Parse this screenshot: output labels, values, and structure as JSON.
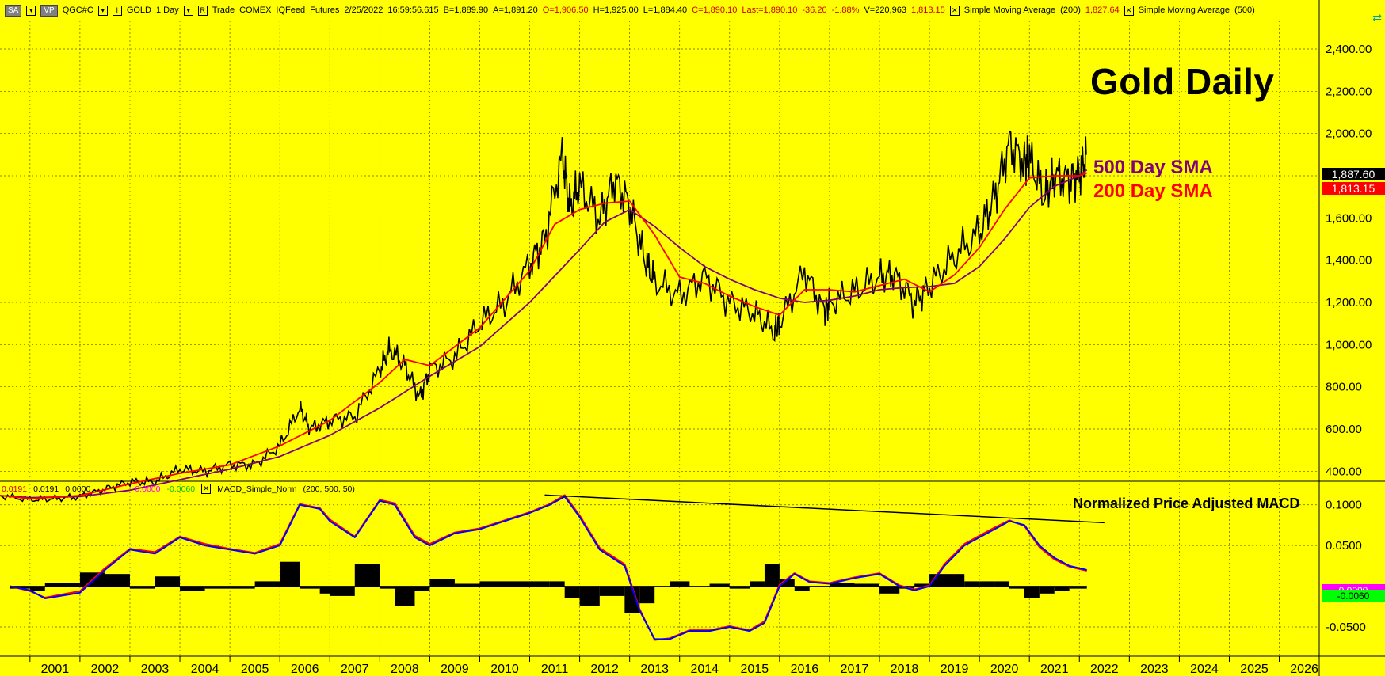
{
  "toolbar": {
    "sa_label": "SA",
    "vp_label": "VP",
    "symbol": "QGC#C",
    "instrument": "GOLD",
    "period": "1 Day",
    "mode": "Trade",
    "exchange": "COMEX",
    "feed": "IQFeed",
    "type": "Futures",
    "datetime": "2/25/2022",
    "time": "16:59:56.615",
    "bid": "B=1,889.90",
    "ask": "A=1,891.20",
    "open": "O=1,906.50",
    "high": "H=1,925.00",
    "low": "L=1,884.40",
    "close": "C=1,890.10",
    "last": "Last=1,890.10",
    "change": "-36.20",
    "change_pct": "-1.88%",
    "volume": "V=220,963",
    "sma200_val": "1,813.15",
    "sma1_name": "Simple Moving Average",
    "sma1_param": "(200)",
    "sma500_val": "1,827.64",
    "sma2_name": "Simple Moving Average",
    "sma2_param": "(500)"
  },
  "annotations": {
    "title": "Gold Daily",
    "sma500_label": "500 Day SMA",
    "sma200_label": "200 Day SMA",
    "macd_title": "Normalized Price Adjusted MACD"
  },
  "macd_legend": {
    "v1": "0.0191",
    "v2": "0.0191",
    "v3": "0.0000",
    "v4": "0.0000",
    "v5": "-0.0060",
    "name": "MACD_Simple_Norm",
    "params": "(200,  500,  50)"
  },
  "price_tags": {
    "last": "1,887.60",
    "sma": "1,813.15",
    "macd_a": "0.0000",
    "macd_b": "-0.0060"
  },
  "colors": {
    "background": "#ffff00",
    "price": "#000000",
    "sma200": "#ff0000",
    "sma500": "#800080",
    "macd_blue": "#0000ff",
    "macd_red": "#ff0000",
    "signal_magenta": "#ff00ff",
    "signal_green": "#00ff00"
  },
  "chart_data": [
    {
      "type": "line",
      "title": "Gold Daily",
      "x_ticks": [
        "2001",
        "2002",
        "2003",
        "2004",
        "2005",
        "2006",
        "2007",
        "2008",
        "2009",
        "2010",
        "2011",
        "2012",
        "2013",
        "2014",
        "2015",
        "2016",
        "2017",
        "2018",
        "2019",
        "2020",
        "2021",
        "2022",
        "2023",
        "2024",
        "2025",
        "2026"
      ],
      "y_ticks": [
        "400.00",
        "600.00",
        "800.00",
        "1,000.00",
        "1,200.00",
        "1,400.00",
        "1,600.00",
        "1,800.00",
        "2,000.00",
        "2,200.00",
        "2,400.00"
      ],
      "ylim": [
        360,
        2520
      ],
      "xlim": [
        2000.4,
        2026.8
      ],
      "grid": true,
      "series": [
        {
          "name": "GOLD",
          "color": "#000000",
          "x": [
            2000.4,
            2001.0,
            2001.5,
            2002.0,
            2002.5,
            2003.0,
            2003.5,
            2004.0,
            2004.5,
            2005.0,
            2005.5,
            2006.0,
            2006.4,
            2006.6,
            2007.0,
            2007.5,
            2008.0,
            2008.2,
            2008.5,
            2008.8,
            2009.0,
            2009.5,
            2010.0,
            2010.5,
            2011.0,
            2011.3,
            2011.65,
            2011.8,
            2012.0,
            2012.4,
            2012.7,
            2013.0,
            2013.3,
            2013.5,
            2014.0,
            2014.5,
            2015.0,
            2015.5,
            2015.9,
            2016.0,
            2016.5,
            2016.9,
            2017.0,
            2017.5,
            2018.0,
            2018.3,
            2018.7,
            2019.0,
            2019.5,
            2020.0,
            2020.3,
            2020.6,
            2020.9,
            2021.0,
            2021.3,
            2021.5,
            2021.8,
            2022.0,
            2022.15
          ],
          "y": [
            285,
            265,
            270,
            280,
            315,
            350,
            350,
            410,
            400,
            430,
            430,
            520,
            700,
            600,
            640,
            660,
            880,
            980,
            900,
            750,
            880,
            940,
            1100,
            1200,
            1380,
            1500,
            1900,
            1650,
            1750,
            1600,
            1780,
            1660,
            1400,
            1300,
            1230,
            1320,
            1200,
            1150,
            1060,
            1100,
            1350,
            1150,
            1200,
            1250,
            1320,
            1330,
            1200,
            1280,
            1420,
            1530,
            1700,
            1950,
            1860,
            1880,
            1700,
            1800,
            1780,
            1810,
            1900
          ]
        },
        {
          "name": "",
          "color": "#ff0000",
          "x": [
            2000.4,
            2001.0,
            2002.0,
            2003.0,
            2004.0,
            2005.0,
            2006.0,
            2007.0,
            2008.0,
            2008.5,
            2009.0,
            2010.0,
            2011.0,
            2011.5,
            2012.0,
            2012.5,
            2013.0,
            2013.5,
            2014.0,
            2014.5,
            2015.0,
            2015.5,
            2016.0,
            2016.5,
            2017.0,
            2017.5,
            2018.0,
            2018.5,
            2019.0,
            2019.5,
            2020.0,
            2020.5,
            2021.0,
            2021.5,
            2022.0,
            2022.15
          ],
          "y": [
            285,
            270,
            285,
            340,
            390,
            430,
            520,
            640,
            820,
            930,
            900,
            1080,
            1350,
            1570,
            1640,
            1670,
            1680,
            1520,
            1320,
            1290,
            1230,
            1180,
            1140,
            1260,
            1260,
            1250,
            1280,
            1310,
            1250,
            1330,
            1460,
            1640,
            1790,
            1800,
            1800,
            1813
          ]
        },
        {
          "name": "",
          "color": "#800080",
          "x": [
            2000.4,
            2001.0,
            2002.0,
            2003.0,
            2004.0,
            2005.0,
            2006.0,
            2007.0,
            2008.0,
            2009.0,
            2010.0,
            2011.0,
            2012.0,
            2012.5,
            2013.0,
            2013.5,
            2014.0,
            2014.5,
            2015.0,
            2015.5,
            2016.0,
            2016.5,
            2017.0,
            2017.5,
            2018.0,
            2018.5,
            2019.0,
            2019.5,
            2020.0,
            2020.5,
            2021.0,
            2021.5,
            2022.0,
            2022.15
          ],
          "y": [
            285,
            275,
            280,
            310,
            360,
            410,
            470,
            570,
            700,
            850,
            990,
            1200,
            1450,
            1580,
            1640,
            1560,
            1460,
            1370,
            1310,
            1260,
            1220,
            1200,
            1210,
            1230,
            1260,
            1270,
            1275,
            1290,
            1370,
            1500,
            1650,
            1750,
            1800,
            1828
          ]
        }
      ]
    },
    {
      "type": "line",
      "title": "Normalized Price Adjusted MACD",
      "y_ticks": [
        "0.1000",
        "0.0500",
        "-0.0500"
      ],
      "ylim": [
        -0.085,
        0.125
      ],
      "series": [
        {
          "name": "",
          "color": "#0000ff",
          "x": [
            2000.6,
            2001.0,
            2001.3,
            2002.0,
            2002.5,
            2003.0,
            2003.5,
            2004.0,
            2004.5,
            2005.0,
            2005.5,
            2006.0,
            2006.4,
            2006.8,
            2007.0,
            2007.5,
            2008.0,
            2008.3,
            2008.7,
            2009.0,
            2009.5,
            2010.0,
            2010.5,
            2011.0,
            2011.4,
            2011.7,
            2012.0,
            2012.4,
            2012.9,
            2013.2,
            2013.5,
            2013.8,
            2014.2,
            2014.6,
            2015.0,
            2015.4,
            2015.7,
            2016.0,
            2016.3,
            2016.6,
            2017.0,
            2017.5,
            2018.0,
            2018.4,
            2018.7,
            2019.0,
            2019.3,
            2019.7,
            2020.0,
            2020.3,
            2020.6,
            2020.9,
            2021.2,
            2021.5,
            2021.8,
            2022.15
          ],
          "y": [
            0.0,
            -0.005,
            -0.015,
            -0.008,
            0.02,
            0.045,
            0.04,
            0.06,
            0.05,
            0.045,
            0.04,
            0.05,
            0.1,
            0.095,
            0.08,
            0.06,
            0.105,
            0.1,
            0.06,
            0.05,
            0.065,
            0.07,
            0.08,
            0.09,
            0.1,
            0.11,
            0.085,
            0.045,
            0.025,
            -0.03,
            -0.065,
            -0.065,
            -0.055,
            -0.055,
            -0.05,
            -0.055,
            -0.045,
            0.0,
            0.015,
            0.005,
            0.003,
            0.01,
            0.015,
            0.0,
            -0.005,
            0.0,
            0.025,
            0.05,
            0.06,
            0.07,
            0.08,
            0.075,
            0.05,
            0.035,
            0.025,
            0.02
          ]
        },
        {
          "name": "",
          "color": "#ff0000",
          "x": [
            2000.6,
            2001.0,
            2001.3,
            2002.0,
            2002.5,
            2003.0,
            2003.5,
            2004.0,
            2004.5,
            2005.0,
            2005.5,
            2006.0,
            2006.4,
            2006.8,
            2007.0,
            2007.5,
            2008.0,
            2008.3,
            2008.7,
            2009.0,
            2009.5,
            2010.0,
            2010.5,
            2011.0,
            2011.4,
            2011.7,
            2012.0,
            2012.4,
            2012.9,
            2013.2,
            2013.5,
            2013.8,
            2014.2,
            2014.6,
            2015.0,
            2015.4,
            2015.7,
            2016.0,
            2016.3,
            2016.6,
            2017.0,
            2017.5,
            2018.0,
            2018.4,
            2018.7,
            2019.0,
            2019.3,
            2019.7,
            2020.0,
            2020.3,
            2020.6,
            2020.9,
            2021.2,
            2021.5,
            2021.8,
            2022.15
          ],
          "y": [
            0.0,
            -0.006,
            -0.014,
            -0.006,
            0.022,
            0.046,
            0.042,
            0.061,
            0.052,
            0.046,
            0.041,
            0.052,
            0.101,
            0.096,
            0.082,
            0.061,
            0.106,
            0.102,
            0.062,
            0.052,
            0.066,
            0.071,
            0.081,
            0.091,
            0.101,
            0.112,
            0.087,
            0.047,
            0.027,
            -0.028,
            -0.066,
            -0.064,
            -0.054,
            -0.054,
            -0.049,
            -0.054,
            -0.043,
            0.002,
            0.016,
            0.006,
            0.004,
            0.011,
            0.016,
            0.001,
            -0.004,
            0.001,
            0.027,
            0.052,
            0.062,
            0.072,
            0.081,
            0.074,
            0.048,
            0.033,
            0.024,
            0.019
          ]
        }
      ]
    }
  ]
}
